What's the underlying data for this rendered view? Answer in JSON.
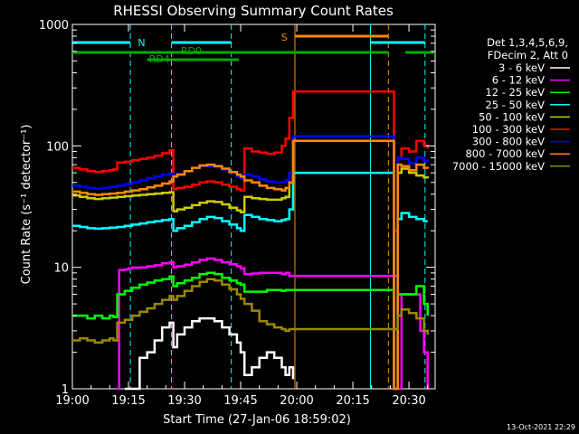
{
  "chart_data": {
    "type": "line",
    "title": "RHESSI Observing Summary Count Rates",
    "xlabel": "Start Time (27-Jan-06 18:59:02)",
    "ylabel": "Count Rate (s⁻¹ detector⁻¹)",
    "yscale": "log",
    "ylim": [
      1,
      1000
    ],
    "xlim_minutes": [
      0,
      97
    ],
    "x_ticks": [
      {
        "t": 0,
        "label": "19:00"
      },
      {
        "t": 15,
        "label": "19:15"
      },
      {
        "t": 30,
        "label": "19:30"
      },
      {
        "t": 45,
        "label": "19:45"
      },
      {
        "t": 60,
        "label": "20:00"
      },
      {
        "t": 75,
        "label": "20:15"
      },
      {
        "t": 90,
        "label": "20:30"
      }
    ],
    "y_ticks": [
      {
        "v": 1,
        "label": "1"
      },
      {
        "v": 10,
        "label": "10"
      },
      {
        "v": 100,
        "label": "100"
      },
      {
        "v": 1000,
        "label": "1000"
      }
    ],
    "legend_header": [
      "Det 1,3,4,5,6,9,",
      "FDecim 2, Att 0"
    ],
    "legend_position": "right",
    "series": [
      {
        "name": "3 - 6 keV",
        "color": "#ffffff",
        "x": [
          14,
          17,
          18,
          20,
          22,
          24,
          26,
          27,
          28,
          30,
          32,
          34,
          36,
          38,
          40,
          42,
          44,
          45,
          46,
          48,
          50,
          52,
          54,
          56,
          57,
          58,
          59
        ],
        "y": [
          1,
          1,
          1.8,
          2,
          2.5,
          3.2,
          3.5,
          2.2,
          2.8,
          3.2,
          3.6,
          3.8,
          3.8,
          3.6,
          3.2,
          2.8,
          2.4,
          2,
          1.3,
          1.5,
          1.8,
          2,
          1.8,
          1.5,
          1.3,
          1.5,
          1.2
        ]
      },
      {
        "name": "6 - 12 keV",
        "color": "#ff00ff",
        "x": [
          12,
          12.5,
          14,
          15,
          16,
          17,
          18,
          20,
          22,
          24,
          26,
          27,
          28,
          30,
          32,
          34,
          36,
          38,
          40,
          42,
          44,
          45,
          46,
          48,
          50,
          52,
          54,
          56,
          57,
          58,
          87,
          88,
          90,
          93,
          94,
          94.5,
          95
        ],
        "y": [
          1,
          9.5,
          9.6,
          9.8,
          10,
          9.9,
          10,
          10.2,
          10.4,
          10.8,
          11,
          10,
          10.2,
          10.5,
          11,
          11.5,
          11.8,
          11.5,
          11,
          10.6,
          10.2,
          9.8,
          8.8,
          8.9,
          9,
          9,
          9,
          8.8,
          9,
          8.5,
          1,
          6,
          6,
          3,
          2,
          2,
          1
        ]
      },
      {
        "name": "12 - 25 keV",
        "color": "#00ff00",
        "x": [
          0,
          2,
          4,
          6,
          8,
          10,
          11,
          12,
          14,
          16,
          18,
          20,
          22,
          24,
          26,
          27,
          28,
          30,
          32,
          34,
          36,
          38,
          40,
          42,
          44,
          45,
          46,
          48,
          50,
          52,
          54,
          56,
          57,
          58,
          86,
          87,
          88,
          90,
          92,
          94,
          95
        ],
        "y": [
          4,
          4,
          3.8,
          4,
          3.8,
          4,
          3.9,
          6,
          6.4,
          6.8,
          7.2,
          7.5,
          7.8,
          8,
          8.4,
          7,
          7.4,
          7.8,
          8.2,
          8.8,
          9,
          8.8,
          8.2,
          7.8,
          7.4,
          7.2,
          6.3,
          6.3,
          6.3,
          6.5,
          6.5,
          6.4,
          6.5,
          6.5,
          1,
          6,
          6,
          6,
          7,
          5,
          4
        ]
      },
      {
        "name": "25 - 50 keV",
        "color": "#00ffff",
        "x": [
          0,
          2,
          4,
          6,
          8,
          10,
          12,
          14,
          16,
          18,
          20,
          22,
          24,
          26,
          27,
          28,
          30,
          32,
          34,
          36,
          38,
          40,
          42,
          44,
          45,
          46,
          48,
          50,
          52,
          54,
          56,
          57,
          58,
          59,
          86,
          87,
          88,
          90,
          92,
          94,
          95
        ],
        "y": [
          22,
          21.5,
          21,
          20.8,
          21,
          21.2,
          21.5,
          22,
          22.5,
          23,
          23.5,
          24,
          24.5,
          25,
          20,
          21,
          22,
          23.5,
          25,
          26,
          25.5,
          24,
          22.5,
          21,
          20,
          27,
          26,
          25,
          24.5,
          24,
          24.5,
          25,
          30,
          60,
          1,
          25,
          28,
          26,
          25,
          24,
          24
        ]
      },
      {
        "name": "50 - 100 keV",
        "color": "#cccc00",
        "x": [
          0,
          2,
          4,
          6,
          8,
          10,
          12,
          14,
          16,
          18,
          20,
          22,
          24,
          26,
          27,
          28,
          30,
          32,
          34,
          36,
          38,
          40,
          42,
          44,
          45,
          46,
          48,
          50,
          52,
          54,
          56,
          57,
          58,
          59,
          86,
          87,
          88,
          90,
          92,
          94,
          95
        ],
        "y": [
          39,
          38,
          37,
          36.5,
          37,
          37.5,
          38,
          38.5,
          39,
          39.5,
          40,
          40.5,
          41,
          41.5,
          29,
          30,
          31,
          32.5,
          34,
          35,
          34.5,
          33,
          31,
          29.5,
          28.5,
          38,
          37,
          36.5,
          36,
          36,
          37,
          38,
          50,
          120,
          1,
          60,
          65,
          60,
          57,
          55,
          54
        ]
      },
      {
        "name": "100 - 300 keV",
        "color": "#ff0000",
        "x": [
          0,
          2,
          4,
          6,
          8,
          10,
          11,
          12,
          14,
          16,
          18,
          20,
          22,
          24,
          26,
          27,
          28,
          30,
          32,
          34,
          36,
          38,
          40,
          42,
          44,
          45,
          46,
          48,
          50,
          52,
          54,
          56,
          57,
          58,
          59,
          86,
          87,
          88,
          90,
          92,
          94,
          95
        ],
        "y": [
          66,
          64,
          62,
          61,
          62,
          63,
          64,
          73,
          74,
          76,
          78,
          80,
          83,
          87,
          92,
          44,
          45,
          46,
          48,
          50,
          51,
          50,
          48,
          46,
          44,
          43,
          95,
          90,
          88,
          86,
          88,
          100,
          115,
          170,
          280,
          20,
          80,
          95,
          90,
          110,
          100,
          95
        ]
      },
      {
        "name": "300 - 800 keV",
        "color": "#0000ff",
        "x": [
          0,
          2,
          4,
          6,
          8,
          10,
          12,
          14,
          16,
          18,
          20,
          22,
          24,
          26,
          27,
          28,
          30,
          32,
          34,
          36,
          38,
          40,
          42,
          44,
          45,
          46,
          48,
          50,
          52,
          54,
          56,
          57,
          58,
          59,
          86,
          87,
          88,
          90,
          92,
          94,
          95
        ],
        "y": [
          47,
          46,
          45,
          44.5,
          45,
          46,
          47,
          48.5,
          50,
          52,
          54,
          56,
          58,
          59,
          56,
          59,
          62,
          66,
          68,
          68,
          67,
          64,
          60,
          56,
          54,
          58,
          56,
          53,
          51,
          50,
          50,
          52,
          60,
          120,
          1,
          80,
          78,
          72,
          80,
          75,
          74
        ]
      },
      {
        "name": "800 - 7000 keV",
        "color": "#ff8800",
        "x": [
          0,
          2,
          4,
          6,
          8,
          10,
          12,
          14,
          16,
          18,
          20,
          22,
          24,
          26,
          27,
          28,
          30,
          32,
          34,
          36,
          38,
          40,
          42,
          44,
          45,
          46,
          48,
          50,
          52,
          54,
          56,
          57,
          58,
          59,
          86,
          87,
          88,
          90,
          92,
          94,
          95
        ],
        "y": [
          42,
          41,
          40,
          39.5,
          40,
          40.5,
          41,
          42,
          43,
          44,
          45.5,
          47,
          49,
          51,
          56,
          58,
          62,
          66,
          69,
          70,
          68,
          65,
          61,
          58,
          56,
          52,
          50,
          47,
          45,
          44,
          43,
          45,
          50,
          110,
          1,
          70,
          68,
          63,
          70,
          66,
          65
        ]
      },
      {
        "name": "7000 - 15000 keV",
        "color": "#998800",
        "x": [
          0,
          2,
          4,
          6,
          8,
          10,
          11,
          12,
          14,
          16,
          18,
          20,
          22,
          24,
          26,
          27,
          28,
          30,
          32,
          34,
          36,
          38,
          40,
          42,
          44,
          45,
          46,
          48,
          50,
          52,
          54,
          56,
          57,
          58,
          87,
          88,
          90,
          92,
          94,
          95
        ],
        "y": [
          2.5,
          2.6,
          2.5,
          2.4,
          2.5,
          2.6,
          2.5,
          3.5,
          3.7,
          4,
          4.3,
          4.6,
          5,
          5.4,
          5.8,
          5.4,
          5.8,
          6.4,
          7,
          7.6,
          8,
          7.8,
          7.2,
          6.6,
          6,
          5.5,
          5,
          4.4,
          3.6,
          3.4,
          3.2,
          3.1,
          3,
          3.1,
          4,
          4.5,
          4.2,
          3.8,
          3,
          2.8
        ]
      }
    ],
    "vertical_lines": [
      {
        "t": 59.5,
        "color": "#ff8800",
        "style": "solid"
      },
      {
        "t": 79.7,
        "color": "#00ffff",
        "style": "solid"
      },
      {
        "t": 84.5,
        "color": "#ff8800",
        "style": "dashed"
      },
      {
        "t": 15.5,
        "color": "#00ffff",
        "style": "dashed"
      },
      {
        "t": 26.5,
        "color": "#00ffff",
        "style": "dashed"
      },
      {
        "t": 42.5,
        "color": "#00ffff",
        "style": "dashed"
      },
      {
        "t": 94.3,
        "color": "#00ffff",
        "style": "dashed"
      }
    ],
    "flag_bars": [
      {
        "label": "N",
        "color": "#00ffff",
        "segments": [
          [
            0,
            15.5
          ],
          [
            26.5,
            42.5
          ],
          [
            79.7,
            94.3
          ]
        ],
        "row": 0
      },
      {
        "label": "S",
        "color": "#ff8800",
        "segments": [
          [
            59.5,
            84.5
          ]
        ],
        "row": 1
      },
      {
        "label": "RD0",
        "color": "#00aa00",
        "segments": [
          [
            0,
            84.5
          ],
          [
            89,
            97
          ]
        ],
        "row": 2
      },
      {
        "label": "RD4",
        "color": "#00aa00",
        "segments": [
          [
            20,
            44.5
          ]
        ],
        "row": 3
      }
    ],
    "grid": false
  },
  "footer": {
    "timestamp": "13-Oct-2021 22:29"
  }
}
